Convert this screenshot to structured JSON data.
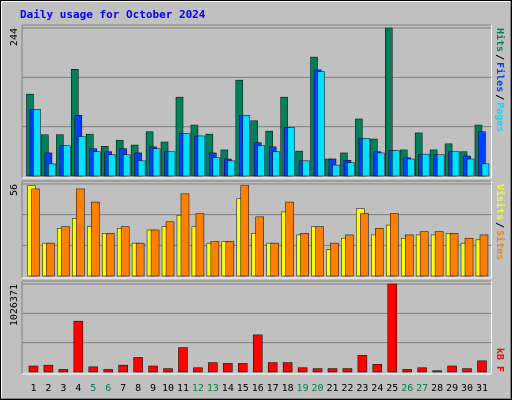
{
  "chart_data": [
    {
      "type": "bar",
      "title": "Daily usage for October 2024",
      "legend_separator": "/",
      "ylim": [
        0,
        244
      ],
      "yticks": [
        244
      ],
      "grid_divisions": 3,
      "series": [
        {
          "name": "Hits",
          "color": "#00805c",
          "values": [
            135,
            68,
            68,
            176,
            69,
            49,
            59,
            51,
            73,
            56,
            130,
            84,
            69,
            43,
            158,
            91,
            74,
            130,
            41,
            196,
            28,
            38,
            94,
            61,
            244,
            43,
            71,
            43,
            53,
            40,
            84
          ]
        },
        {
          "name": "Files",
          "color": "#0040ff",
          "values": [
            110,
            38,
            50,
            100,
            45,
            40,
            45,
            38,
            48,
            40,
            70,
            66,
            38,
            28,
            100,
            55,
            48,
            80,
            25,
            175,
            28,
            26,
            62,
            40,
            42,
            30,
            36,
            35,
            40,
            33,
            73
          ]
        },
        {
          "name": "Pages",
          "color": "#00e0ff",
          "values": [
            110,
            20,
            50,
            65,
            40,
            35,
            35,
            25,
            45,
            40,
            70,
            66,
            30,
            25,
            100,
            50,
            40,
            80,
            25,
            172,
            18,
            22,
            62,
            38,
            42,
            28,
            36,
            35,
            40,
            28,
            20
          ]
        }
      ]
    },
    {
      "type": "bar",
      "legend_separator": "/",
      "ylim": [
        0,
        56
      ],
      "yticks": [
        56
      ],
      "grid_divisions": 3,
      "series": [
        {
          "name": "Visits",
          "color": "#ffff00",
          "values": [
            55,
            20,
            29,
            35,
            30,
            26,
            29,
            20,
            28,
            30,
            37,
            30,
            20,
            21,
            47,
            26,
            20,
            39,
            25,
            30,
            16,
            23,
            41,
            25,
            31,
            23,
            25,
            25,
            26,
            20,
            22
          ]
        },
        {
          "name": "Sites",
          "color": "#ff8000",
          "values": [
            53,
            20,
            30,
            53,
            45,
            26,
            30,
            20,
            28,
            33,
            50,
            38,
            21,
            21,
            55,
            36,
            20,
            45,
            26,
            30,
            20,
            25,
            38,
            29,
            38,
            25,
            27,
            27,
            26,
            23,
            25
          ]
        }
      ]
    },
    {
      "type": "bar",
      "ylim": [
        0,
        1026371
      ],
      "yticks": [
        1026371
      ],
      "grid_divisions": 3,
      "categories": [
        "1",
        "2",
        "3",
        "4",
        "5",
        "6",
        "7",
        "8",
        "9",
        "10",
        "11",
        "12",
        "13",
        "14",
        "15",
        "16",
        "17",
        "18",
        "19",
        "20",
        "21",
        "22",
        "23",
        "24",
        "25",
        "26",
        "27",
        "28",
        "29",
        "30",
        "31"
      ],
      "category_colors": [
        "#000",
        "#000",
        "#000",
        "#000",
        "#008040",
        "#008040",
        "#000",
        "#000",
        "#000",
        "#000",
        "#000",
        "#008040",
        "#008040",
        "#000",
        "#000",
        "#000",
        "#000",
        "#000",
        "#008040",
        "#008040",
        "#000",
        "#000",
        "#000",
        "#000",
        "#000",
        "#008040",
        "#008040",
        "#000",
        "#000",
        "#000",
        "#000"
      ],
      "series": [
        {
          "name": "kB F",
          "color": "#ff0000",
          "values": [
            70000,
            80000,
            30000,
            593000,
            60000,
            30000,
            80000,
            170000,
            70000,
            40000,
            285000,
            50000,
            110000,
            100000,
            100000,
            433000,
            110000,
            110000,
            50000,
            40000,
            40000,
            40000,
            194000,
            90000,
            1026371,
            30000,
            50000,
            15000,
            70000,
            40000,
            130000
          ]
        }
      ]
    }
  ]
}
